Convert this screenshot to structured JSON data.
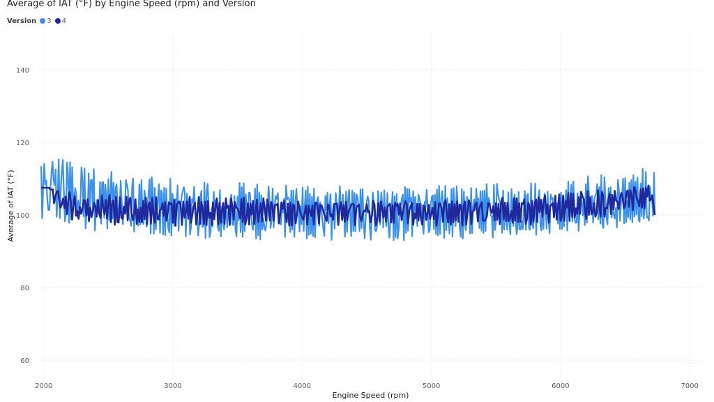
{
  "title": "Average of IAT (°F) by Engine Speed (rpm) and Version",
  "legend": {
    "title": "Version",
    "items": [
      {
        "label": "3",
        "color": "#3b91ec"
      },
      {
        "label": "4",
        "color": "#1f289c"
      }
    ]
  },
  "chart_data": {
    "type": "line",
    "title": "Average of IAT (°F) by Engine Speed (rpm) and Version",
    "xlabel": "Engine Speed (rpm)",
    "ylabel": "Average of IAT (°F)",
    "xlim": [
      1980,
      7080
    ],
    "ylim": [
      55,
      150
    ],
    "xticks": [
      2000,
      3000,
      4000,
      5000,
      6000,
      7000
    ],
    "yticks": [
      60,
      80,
      100,
      120,
      140
    ],
    "grid": true,
    "legend_position": "top-left",
    "x_range": [
      1980,
      6730
    ],
    "series": [
      {
        "name": "3",
        "color": "#3b91ec",
        "trend_x": [
          1980,
          2100,
          2300,
          2600,
          3000,
          3500,
          4000,
          5000,
          5700,
          6000,
          6300,
          6600,
          6730
        ],
        "trend_y": [
          108,
          107,
          105,
          103,
          101,
          101,
          101,
          101,
          101,
          101,
          102,
          104,
          100
        ],
        "envelope_low": [
          98,
          98,
          96,
          95,
          94,
          93,
          93,
          93,
          94,
          95,
          96,
          97,
          100
        ],
        "envelope_high": [
          118,
          117,
          115,
          111,
          110,
          109,
          108,
          108,
          109,
          110,
          111,
          113,
          113
        ]
      },
      {
        "name": "4",
        "color": "#1f289c",
        "trend_x": [
          1980,
          2000,
          2040,
          2100,
          2300,
          2600,
          3000,
          3500,
          4000,
          5000,
          5700,
          6000,
          6300,
          6600,
          6700,
          6730
        ],
        "trend_y": [
          107.5,
          107.5,
          107.5,
          104,
          102,
          101,
          101,
          101,
          101,
          101,
          101,
          102,
          103,
          105,
          106,
          100
        ],
        "envelope_low": [
          107.5,
          107.5,
          107.5,
          99,
          98,
          97,
          97,
          97,
          97,
          97,
          97,
          98,
          99,
          101,
          102,
          100
        ],
        "envelope_high": [
          107.5,
          107.5,
          107.5,
          107,
          106,
          106,
          105,
          105,
          104,
          104,
          105,
          106,
          107,
          108,
          109,
          100
        ]
      }
    ]
  }
}
